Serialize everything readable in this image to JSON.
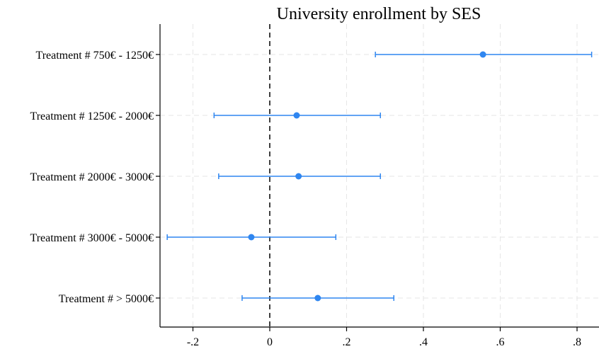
{
  "chart_data": {
    "type": "coefficient-plot",
    "title": "University enrollment by SES",
    "xlabel": "",
    "ylabel": "",
    "xlim": [
      -0.29,
      0.85
    ],
    "x_ticks": [
      -0.2,
      0,
      0.2,
      0.4,
      0.6,
      0.8
    ],
    "x_tick_labels": [
      "-.2",
      "0",
      ".2",
      ".4",
      ".6",
      ".8"
    ],
    "reference_line": 0,
    "grid": true,
    "categories": [
      "Treatment # 750€ - 1250€",
      "Treatment # 1250€ - 2000€",
      "Treatment # 2000€ - 3000€",
      "Treatment # 3000€ - 5000€",
      "Treatment # > 5000€"
    ],
    "series": [
      {
        "estimate": [
          0.555,
          0.07,
          0.075,
          -0.048,
          0.125
        ],
        "ci_low": [
          0.275,
          -0.145,
          -0.133,
          -0.267,
          -0.072
        ],
        "ci_high": [
          0.838,
          0.288,
          0.288,
          0.172,
          0.323
        ]
      }
    ],
    "colors": {
      "marker": "#2f86f0",
      "grid": "#e6e6e6",
      "axis": "#000000"
    }
  }
}
